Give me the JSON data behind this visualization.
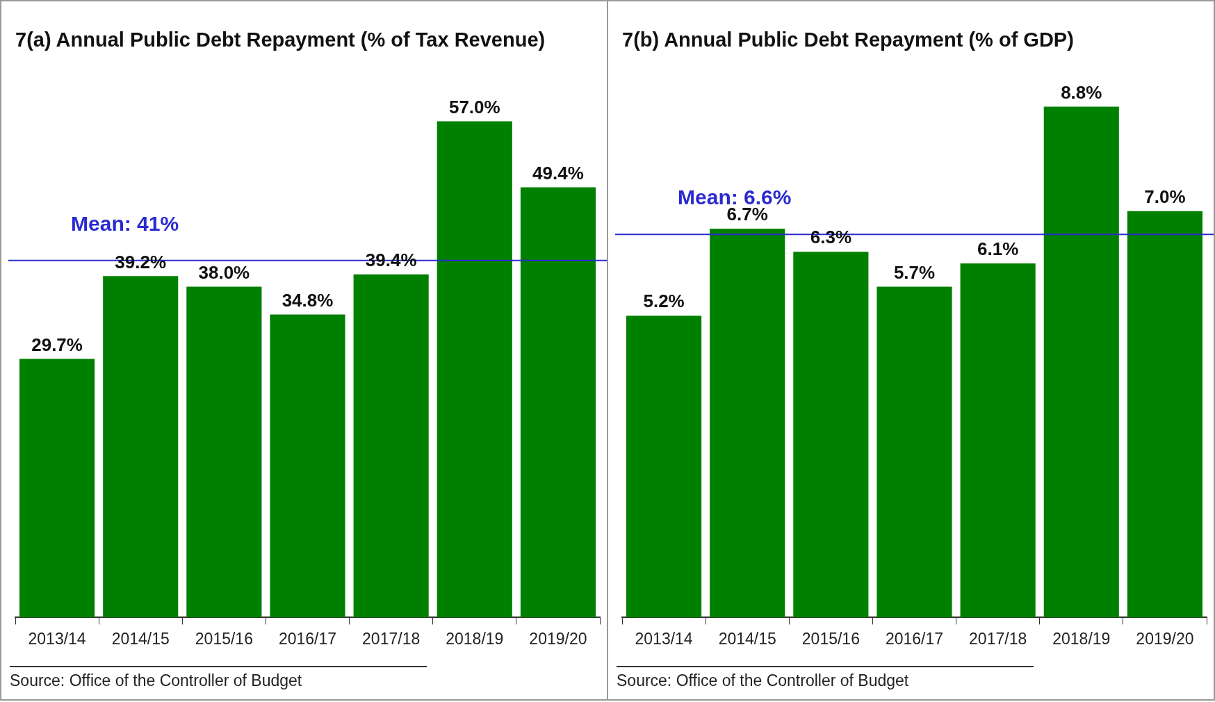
{
  "chart_data": [
    {
      "type": "bar",
      "title": "7(a) Annual Public Debt Repayment (% of Tax Revenue)",
      "categories": [
        "2013/14",
        "2014/15",
        "2015/16",
        "2016/17",
        "2017/18",
        "2018/19",
        "2019/20"
      ],
      "values": [
        29.7,
        39.2,
        38.0,
        34.8,
        39.4,
        57.0,
        49.4
      ],
      "value_labels": [
        "29.7%",
        "39.2%",
        "38.0%",
        "34.8%",
        "39.4%",
        "57.0%",
        "49.4%"
      ],
      "color": "#008000",
      "tick_labels": "x",
      "grid": false,
      "ref_lines": [
        {
          "axis": "y",
          "value": 41,
          "label": "Mean: 41%",
          "color": "#2a2ad0"
        }
      ],
      "annotations": [
        "Source: Office of the Controller of Budget"
      ]
    },
    {
      "type": "bar",
      "title": "7(b) Annual Public Debt Repayment (% of GDP)",
      "categories": [
        "2013/14",
        "2014/15",
        "2015/16",
        "2016/17",
        "2017/18",
        "2018/19",
        "2019/20"
      ],
      "values": [
        5.2,
        6.7,
        6.3,
        5.7,
        6.1,
        8.8,
        7.0
      ],
      "value_labels": [
        "5.2%",
        "6.7%",
        "6.3%",
        "5.7%",
        "6.1%",
        "8.8%",
        "7.0%"
      ],
      "color": "#008000",
      "tick_labels": "x",
      "grid": false,
      "ref_lines": [
        {
          "axis": "y",
          "value": 6.6,
          "label": "Mean: 6.6%",
          "color": "#2a2ad0"
        }
      ],
      "annotations": [
        "Source: Office of the Controller of Budget"
      ]
    }
  ]
}
